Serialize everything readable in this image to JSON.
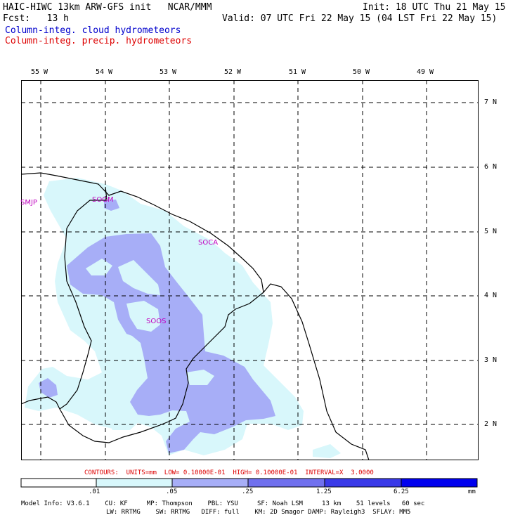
{
  "header": {
    "line1_left": "HAIC-HIWC 13km ARW-GFS init   NCAR/MMM",
    "line1_right": "Init: 18 UTC Thu 21 May 15",
    "line2_left": "Fcst:   13 h",
    "line2_right": "Valid: 07 UTC Fri 22 May 15 (04 LST Fri 22 May 15)",
    "field_cloud": "Column-integ. cloud hydrometeors",
    "field_precip": "Column-integ. precip. hydrometeors",
    "color_cloud": "#0000cc",
    "color_precip": "#dd0000"
  },
  "map": {
    "lon_labels": [
      "55 W",
      "54 W",
      "53 W",
      "52 W",
      "51 W",
      "50 W",
      "49 W"
    ],
    "lat_labels": [
      "7 N",
      "6 N",
      "5 N",
      "4 N",
      "3 N",
      "2 N"
    ],
    "stations": [
      "SMJP",
      "SOGM",
      "SOCA",
      "SOOS"
    ],
    "fill_light": "#d8f7fb",
    "fill_medium": "#a7aef7"
  },
  "contours_note": "CONTOURS:  UNITS=mm  LOW= 0.10000E-01  HIGH= 0.10000E-01  INTERVAL=X  3.0000",
  "colorbar": {
    "ticks": [
      ".01",
      ".05",
      ".25",
      "1.25",
      "6.25"
    ],
    "unit": "mm",
    "colors": [
      "#ffffff",
      "#d8f7fb",
      "#a7aef7",
      "#7070ee",
      "#3a3ae8",
      "#0000ee"
    ]
  },
  "footer": {
    "line1": "Model Info: V3.6.1    CU: KF     MP: Thompson    PBL: YSU     SF: Noah LSM     13 km    51 levels   60 sec",
    "line2": "LW: RRTMG    SW: RRTMG   DIFF: full    KM: 2D Smagor DAMP: Rayleigh3  SFLAY: MM5"
  }
}
